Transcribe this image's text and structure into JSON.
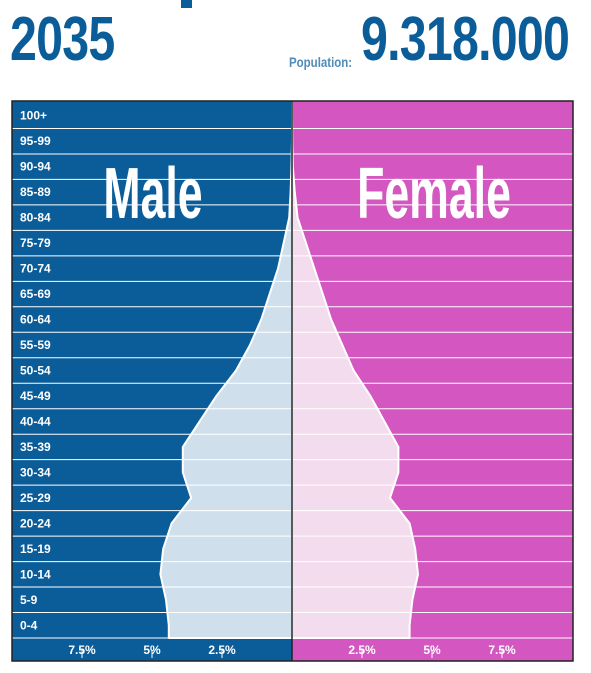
{
  "header": {
    "year": "2035",
    "population_label": "Population:",
    "population_value": "9.318.000"
  },
  "colors": {
    "male_bg": "#0b5d9a",
    "female_bg": "#d456c0",
    "male_fill": "#cfe0ec",
    "female_fill": "#f4dcef",
    "title_blue": "#0b5d9a"
  },
  "chart_data": {
    "type": "population-pyramid",
    "male_label": "Male",
    "female_label": "Female",
    "categories": [
      "0-4",
      "5-9",
      "10-14",
      "15-19",
      "20-24",
      "25-29",
      "30-34",
      "35-39",
      "40-44",
      "45-49",
      "50-54",
      "55-59",
      "60-64",
      "65-69",
      "70-74",
      "75-79",
      "80-84",
      "85-89",
      "90-94",
      "95-99",
      "100+"
    ],
    "series": [
      {
        "name": "Male",
        "values": [
          4.4,
          4.5,
          4.7,
          4.6,
          4.3,
          3.6,
          3.9,
          3.9,
          3.3,
          2.7,
          2.0,
          1.5,
          1.1,
          0.8,
          0.5,
          0.3,
          0.1,
          0.05,
          0.02,
          0.0,
          0.0
        ]
      },
      {
        "name": "Female",
        "values": [
          4.2,
          4.3,
          4.5,
          4.4,
          4.2,
          3.5,
          3.8,
          3.8,
          3.3,
          2.8,
          2.2,
          1.8,
          1.4,
          1.1,
          0.8,
          0.5,
          0.2,
          0.1,
          0.03,
          0.01,
          0.0
        ]
      }
    ],
    "xaxis_ticks": [
      "7.5%",
      "5%",
      "2.5%",
      "2.5%",
      "5%",
      "7.5%"
    ],
    "xaxis_tick_values": [
      -7.5,
      -5,
      -2.5,
      2.5,
      5,
      7.5
    ],
    "xlim": [
      -10,
      10
    ],
    "grid": true
  }
}
